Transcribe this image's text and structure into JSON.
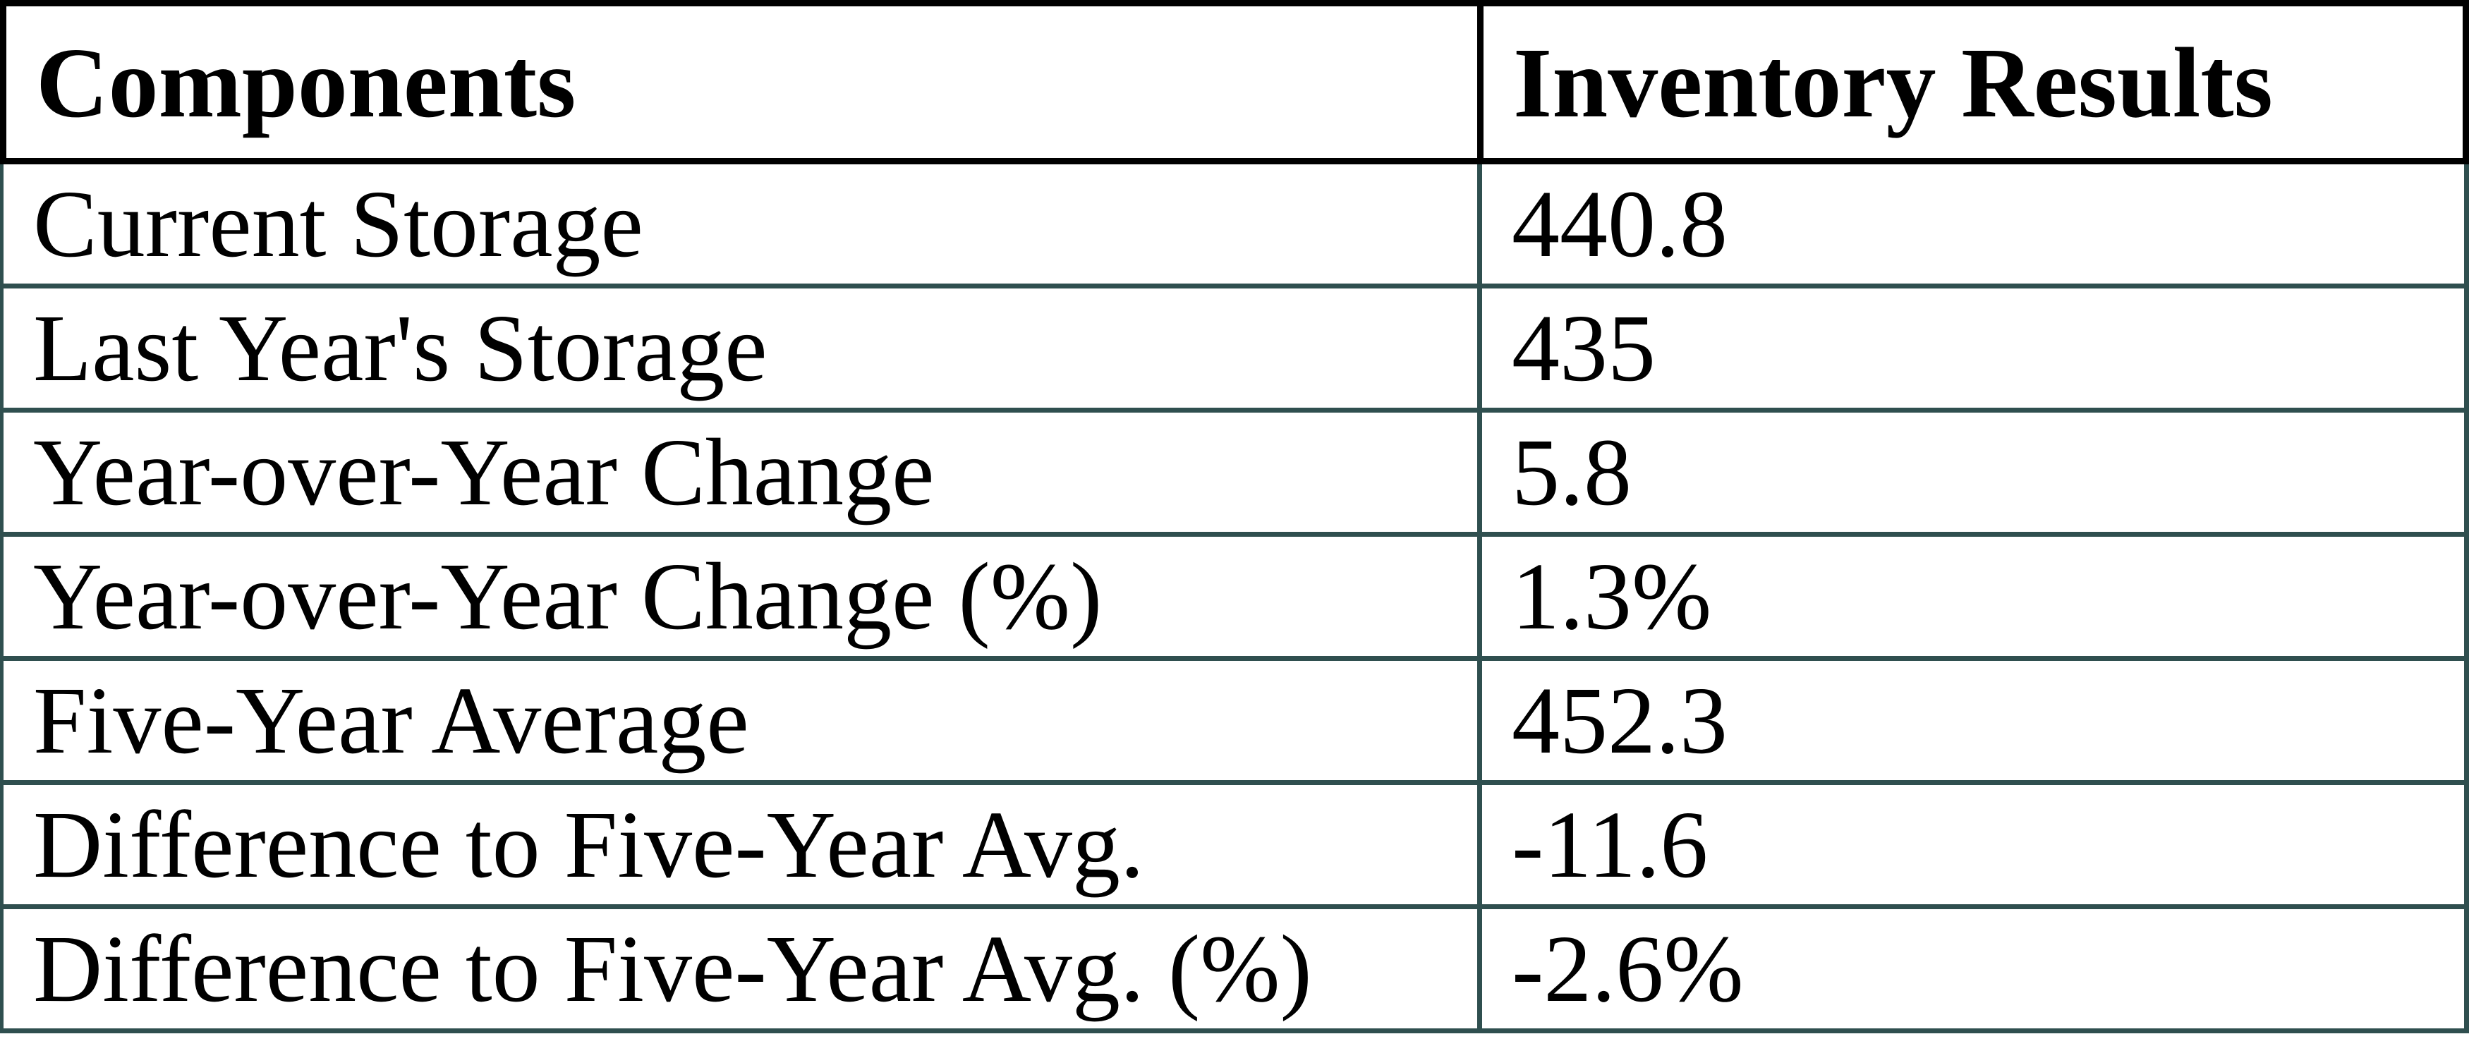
{
  "table": {
    "columns": [
      "Components",
      "Inventory Results"
    ],
    "rows": [
      {
        "label": "Current Storage",
        "value": "440.8"
      },
      {
        "label": "Last Year's Storage",
        "value": "435"
      },
      {
        "label": "Year-over-Year Change",
        "value": "5.8"
      },
      {
        "label": "Year-over-Year Change (%)",
        "value": "1.3%"
      },
      {
        "label": "Five-Year Average",
        "value": "452.3"
      },
      {
        "label": "Difference to Five-Year Avg.",
        "value": "-11.6"
      },
      {
        "label": "Difference to Five-Year Avg. (%)",
        "value": "-2.6%"
      }
    ]
  },
  "colors": {
    "header_border": "#000000",
    "grid_border": "#2F4F4F",
    "text": "#000000",
    "background": "#ffffff"
  }
}
